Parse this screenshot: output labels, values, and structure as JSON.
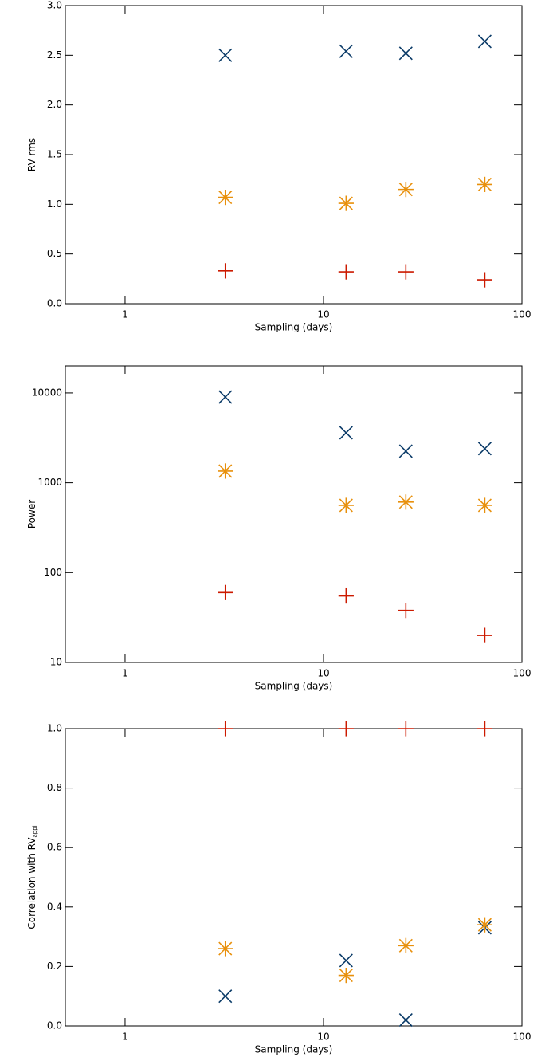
{
  "chart_data": [
    {
      "type": "scatter",
      "xlabel": "Sampling (days)",
      "ylabel": "RV rms",
      "x": [
        3.2,
        13,
        26,
        65
      ],
      "xlim": [
        0.5,
        100
      ],
      "xticks": [
        1,
        10,
        100
      ],
      "xlog": true,
      "ylim": [
        0,
        3
      ],
      "ylog": false,
      "yticks": [
        {
          "value": 0,
          "label": "0.0"
        },
        {
          "value": 0.5,
          "label": "0.5"
        },
        {
          "value": 1,
          "label": "1.0"
        },
        {
          "value": 1.5,
          "label": "1.5"
        },
        {
          "value": 2,
          "label": "2.0"
        },
        {
          "value": 2.5,
          "label": "2.5"
        },
        {
          "value": 3,
          "label": "3.0"
        }
      ],
      "series": [
        {
          "color": "#0b3b68",
          "marker": "x",
          "values": [
            2.5,
            2.54,
            2.52,
            2.64
          ]
        },
        {
          "color": "#e8900c",
          "marker": "asterisk",
          "values": [
            1.07,
            1.01,
            1.15,
            1.2
          ]
        },
        {
          "color": "#cc1a00",
          "marker": "plus",
          "values": [
            0.33,
            0.32,
            0.32,
            0.24
          ]
        }
      ]
    },
    {
      "type": "scatter",
      "xlabel": "Sampling (days)",
      "ylabel": "Power",
      "x": [
        3.2,
        13,
        26,
        65
      ],
      "xlim": [
        0.5,
        100
      ],
      "xticks": [
        1,
        10,
        100
      ],
      "xlog": true,
      "ylim": [
        10,
        20000
      ],
      "ylog": true,
      "yticks": [
        10,
        100,
        1000,
        10000
      ],
      "series": [
        {
          "color": "#0b3b68",
          "marker": "x",
          "values": [
            9000,
            3600,
            2250,
            2400
          ]
        },
        {
          "color": "#e8900c",
          "marker": "asterisk",
          "values": [
            1350,
            560,
            610,
            560
          ]
        },
        {
          "color": "#cc1a00",
          "marker": "plus",
          "values": [
            60,
            55,
            38,
            20
          ]
        }
      ]
    },
    {
      "type": "scatter",
      "xlabel": "Sampling (days)",
      "ylabel": "Correlation with RV",
      "ylabel_sub": "appl",
      "x": [
        3.2,
        13,
        26,
        65
      ],
      "xlim": [
        0.5,
        100
      ],
      "xticks": [
        1,
        10,
        100
      ],
      "xlog": true,
      "ylim": [
        0,
        1
      ],
      "ylog": false,
      "yticks": [
        {
          "value": 0,
          "label": "0.0"
        },
        {
          "value": 0.2,
          "label": "0.2"
        },
        {
          "value": 0.4,
          "label": "0.4"
        },
        {
          "value": 0.6,
          "label": "0.6"
        },
        {
          "value": 0.8,
          "label": "0.8"
        },
        {
          "value": 1,
          "label": "1.0"
        }
      ],
      "series": [
        {
          "color": "#0b3b68",
          "marker": "x",
          "values": [
            0.1,
            0.22,
            0.02,
            0.33
          ]
        },
        {
          "color": "#e8900c",
          "marker": "asterisk",
          "values": [
            0.26,
            0.17,
            0.27,
            0.34
          ]
        },
        {
          "color": "#cc1a00",
          "marker": "plus",
          "values": [
            1,
            1,
            1,
            1
          ]
        }
      ]
    }
  ]
}
